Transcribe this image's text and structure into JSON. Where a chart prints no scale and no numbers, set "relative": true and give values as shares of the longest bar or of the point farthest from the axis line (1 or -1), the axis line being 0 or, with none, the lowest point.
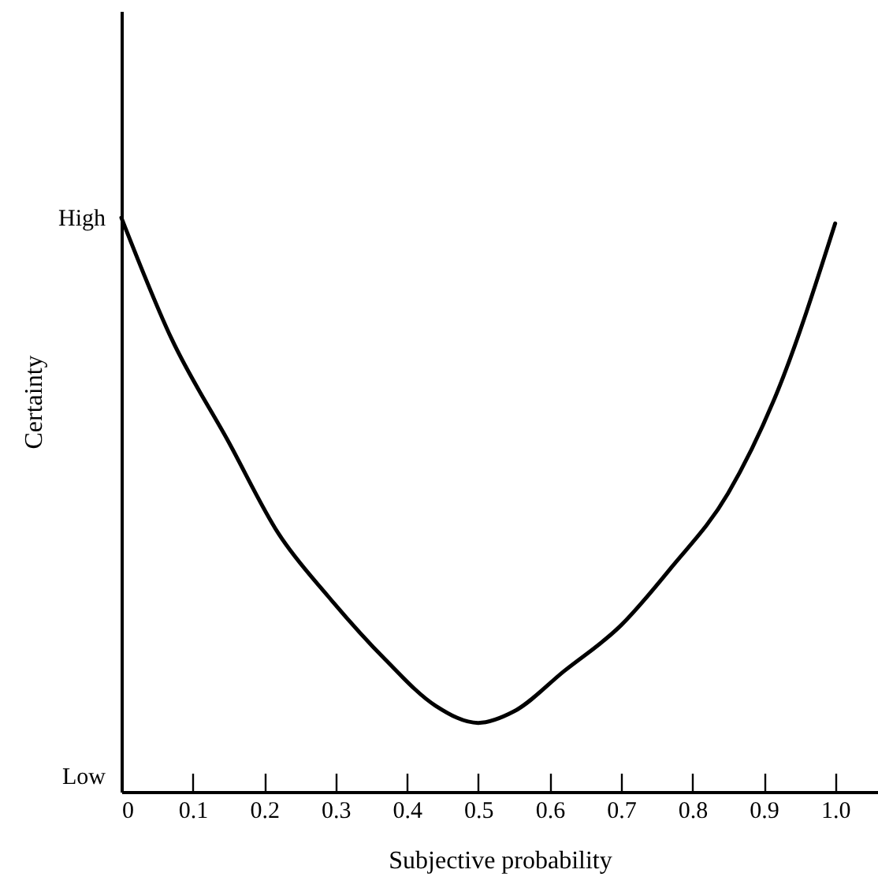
{
  "chart_data": {
    "type": "line",
    "relative": true,
    "xlabel": "Subjective probability",
    "ylabel": "Certainty",
    "annotations": [
      "Low",
      "High"
    ],
    "x": [
      0,
      0.07,
      0.15,
      0.22,
      0.29,
      0.37,
      0.44,
      0.5,
      0.55,
      0.62,
      0.7,
      0.77,
      0.85,
      0.92,
      1.0
    ],
    "series": [
      {
        "color": "#000000",
        "values": [
          1.0,
          0.79,
          0.61,
          0.45,
          0.34,
          0.23,
          0.15,
          0.12,
          0.14,
          0.21,
          0.29,
          0.39,
          0.52,
          0.7,
          0.99
        ]
      }
    ],
    "xlim": [
      0,
      1.06
    ],
    "xticks": [
      {
        "value": 0,
        "label": "0"
      },
      0.1,
      0.2,
      0.3,
      0.4,
      0.5,
      0.6,
      0.7,
      0.8,
      0.9,
      {
        "value": 1,
        "label": "1.0"
      }
    ],
    "grid": false,
    "marker": "none",
    "line_style": "solid"
  }
}
